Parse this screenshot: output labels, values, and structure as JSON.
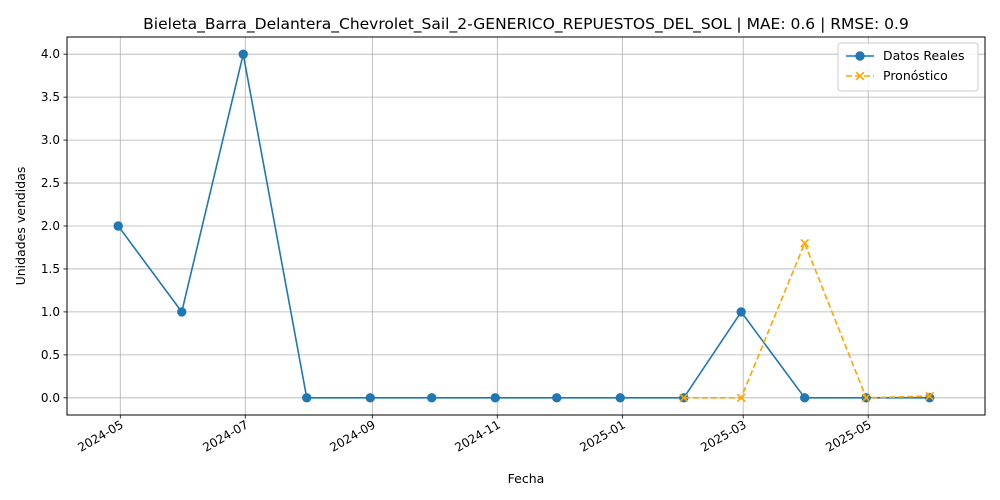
{
  "chart_data": {
    "type": "line",
    "title": "Bieleta_Barra_Delantera_Chevrolet_Sail_2-GENERICO_REPUESTOS_DEL_SOL | MAE: 0.6 | RMSE: 0.9",
    "xlabel": "Fecha",
    "ylabel": "Unidades vendidas",
    "x_tick_labels": [
      "2024-05",
      "2024-07",
      "2024-09",
      "2024-11",
      "2025-01",
      "2025-03",
      "2025-05"
    ],
    "x_ticks": [
      "2024-05-01",
      "2024-07-01",
      "2024-09-01",
      "2024-11-01",
      "2025-01-01",
      "2025-03-01",
      "2025-05-01"
    ],
    "y_tick_labels": [
      "0.0",
      "0.5",
      "1.0",
      "1.5",
      "2.0",
      "2.5",
      "3.0",
      "3.5",
      "4.0"
    ],
    "ylim": [
      -0.2,
      4.2
    ],
    "xlim": [
      "2024-04-05",
      "2025-06-27"
    ],
    "grid": true,
    "legend_position": "top-right",
    "series": [
      {
        "name": "Datos Reales",
        "color": "#1f77b4",
        "linestyle": "solid",
        "marker": "circle",
        "x": [
          "2024-04-30",
          "2024-05-31",
          "2024-06-30",
          "2024-07-31",
          "2024-08-31",
          "2024-09-30",
          "2024-10-31",
          "2024-11-30",
          "2024-12-31",
          "2025-01-31",
          "2025-02-28",
          "2025-03-31",
          "2025-04-30",
          "2025-05-31"
        ],
        "values": [
          2,
          1,
          4,
          0,
          0,
          0,
          0,
          0,
          0,
          0,
          1,
          0,
          0,
          0
        ]
      },
      {
        "name": "Pronóstico",
        "color": "#ffa500",
        "linestyle": "dashed",
        "marker": "x",
        "x": [
          "2025-01-31",
          "2025-02-28",
          "2025-03-31",
          "2025-04-30",
          "2025-05-31"
        ],
        "values": [
          0.0,
          0.0,
          1.8,
          0.0,
          0.02
        ]
      }
    ]
  }
}
